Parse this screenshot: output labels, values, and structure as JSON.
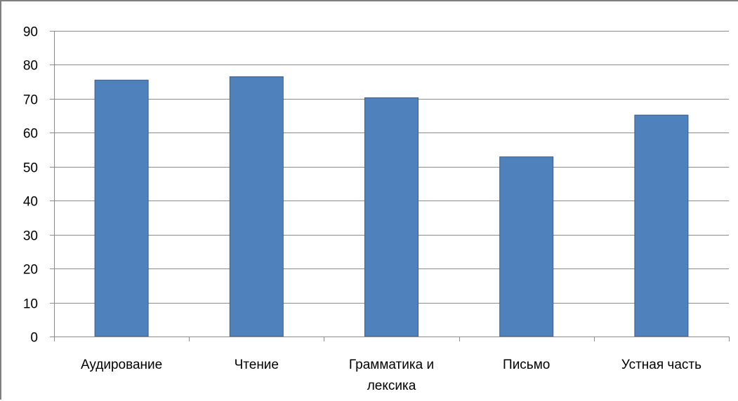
{
  "chart_data": {
    "type": "bar",
    "title": "",
    "xlabel": "",
    "ylabel": "",
    "ylim": [
      0,
      90
    ],
    "yticks": [
      0,
      10,
      20,
      30,
      40,
      50,
      60,
      70,
      80,
      90
    ],
    "grid": true,
    "legend": "none",
    "categories": [
      [
        "Аудирование"
      ],
      [
        "Чтение"
      ],
      [
        "Грамматика и",
        "лексика"
      ],
      [
        "Письмо"
      ],
      [
        "Устная часть"
      ]
    ],
    "values": [
      75.5,
      76.5,
      70.3,
      52.9,
      65.2
    ],
    "colors": {
      "bar_fill": "#4f81bd",
      "bar_stroke": "#385d8a",
      "grid": "#8c8c8c",
      "axis": "#8c8c8c"
    }
  }
}
